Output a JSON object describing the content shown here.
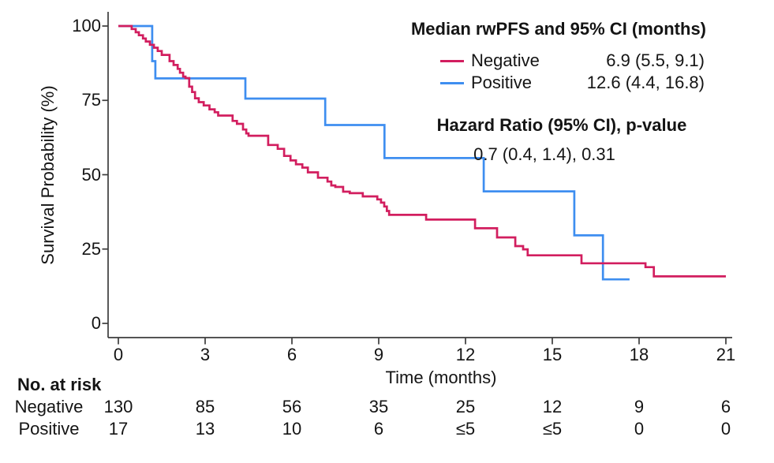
{
  "chart_data": {
    "type": "line",
    "subtype": "kaplan-meier-step",
    "title": "",
    "xlabel": "Time (months)",
    "ylabel": "Survival Probability (%)",
    "xlim": [
      0,
      21
    ],
    "ylim": [
      0,
      100
    ],
    "xticks": [
      0,
      3,
      6,
      9,
      12,
      15,
      18,
      21
    ],
    "yticks": [
      0,
      25,
      50,
      75,
      100
    ],
    "grid": false,
    "legend_position": "top-right",
    "series": [
      {
        "name": "Positive",
        "color": "#3E8EF0",
        "steps": [
          [
            0,
            100
          ],
          [
            1.17,
            88.2
          ],
          [
            1.28,
            82.4
          ],
          [
            4.39,
            75.6
          ],
          [
            7.15,
            66.7
          ],
          [
            9.2,
            55.6
          ],
          [
            12.63,
            44.4
          ],
          [
            15.76,
            29.6
          ],
          [
            16.75,
            14.8
          ],
          [
            17.67,
            14.8
          ]
        ]
      },
      {
        "name": "Negative",
        "color": "#D21E5F",
        "steps": [
          [
            0,
            100
          ],
          [
            0.46,
            99.0
          ],
          [
            0.6,
            97.9
          ],
          [
            0.71,
            96.9
          ],
          [
            0.85,
            95.8
          ],
          [
            0.95,
            94.8
          ],
          [
            1.09,
            93.7
          ],
          [
            1.23,
            92.7
          ],
          [
            1.36,
            91.6
          ],
          [
            1.5,
            90.3
          ],
          [
            1.77,
            88.2
          ],
          [
            1.91,
            86.9
          ],
          [
            2.05,
            85.6
          ],
          [
            2.13,
            84.3
          ],
          [
            2.24,
            83.0
          ],
          [
            2.32,
            82.5
          ],
          [
            2.45,
            79.6
          ],
          [
            2.55,
            77.8
          ],
          [
            2.65,
            75.7
          ],
          [
            2.78,
            74.4
          ],
          [
            2.95,
            73.3
          ],
          [
            3.15,
            72.0
          ],
          [
            3.33,
            71.0
          ],
          [
            3.45,
            69.9
          ],
          [
            3.95,
            68.1
          ],
          [
            4.1,
            67.1
          ],
          [
            4.31,
            65.2
          ],
          [
            4.42,
            63.9
          ],
          [
            4.5,
            63.1
          ],
          [
            5.18,
            60.0
          ],
          [
            5.51,
            58.7
          ],
          [
            5.73,
            56.3
          ],
          [
            5.95,
            54.8
          ],
          [
            6.14,
            53.5
          ],
          [
            6.36,
            52.4
          ],
          [
            6.55,
            50.8
          ],
          [
            6.9,
            49.0
          ],
          [
            7.23,
            47.7
          ],
          [
            7.36,
            46.4
          ],
          [
            7.5,
            45.9
          ],
          [
            7.77,
            44.3
          ],
          [
            8.0,
            43.8
          ],
          [
            8.45,
            42.7
          ],
          [
            8.95,
            41.7
          ],
          [
            9.08,
            40.6
          ],
          [
            9.19,
            39.3
          ],
          [
            9.28,
            37.8
          ],
          [
            9.36,
            36.5
          ],
          [
            10.64,
            34.9
          ],
          [
            12.33,
            32.0
          ],
          [
            13.09,
            28.9
          ],
          [
            13.72,
            26.0
          ],
          [
            13.99,
            24.9
          ],
          [
            14.15,
            22.9
          ],
          [
            16.01,
            20.2
          ],
          [
            18.22,
            18.9
          ],
          [
            18.51,
            15.8
          ],
          [
            21,
            15.8
          ]
        ]
      }
    ]
  },
  "legend": {
    "title": "Median rwPFS and 95% CI (months)",
    "rows": [
      {
        "label": "Negative",
        "value": "6.9 (5.5, 9.1)"
      },
      {
        "label": "Positive",
        "value": "12.6 (4.4, 16.8)"
      }
    ]
  },
  "annotations": {
    "hazard_title": "Hazard Ratio (95% CI), p-value",
    "hazard_value": "0.7 (0.4, 1.4), 0.31"
  },
  "risk_table": {
    "title": "No. at risk",
    "rows": [
      {
        "label": "Negative",
        "values": [
          "130",
          "85",
          "56",
          "35",
          "25",
          "12",
          "9",
          "6"
        ]
      },
      {
        "label": "Positive",
        "values": [
          "17",
          "13",
          "10",
          "6",
          "≤5",
          "≤5",
          "0",
          "0"
        ]
      }
    ]
  },
  "colors": {
    "negative": "#D21E5F",
    "positive": "#3E8EF0",
    "axis": "#3C3C3C",
    "text": "#141414"
  }
}
